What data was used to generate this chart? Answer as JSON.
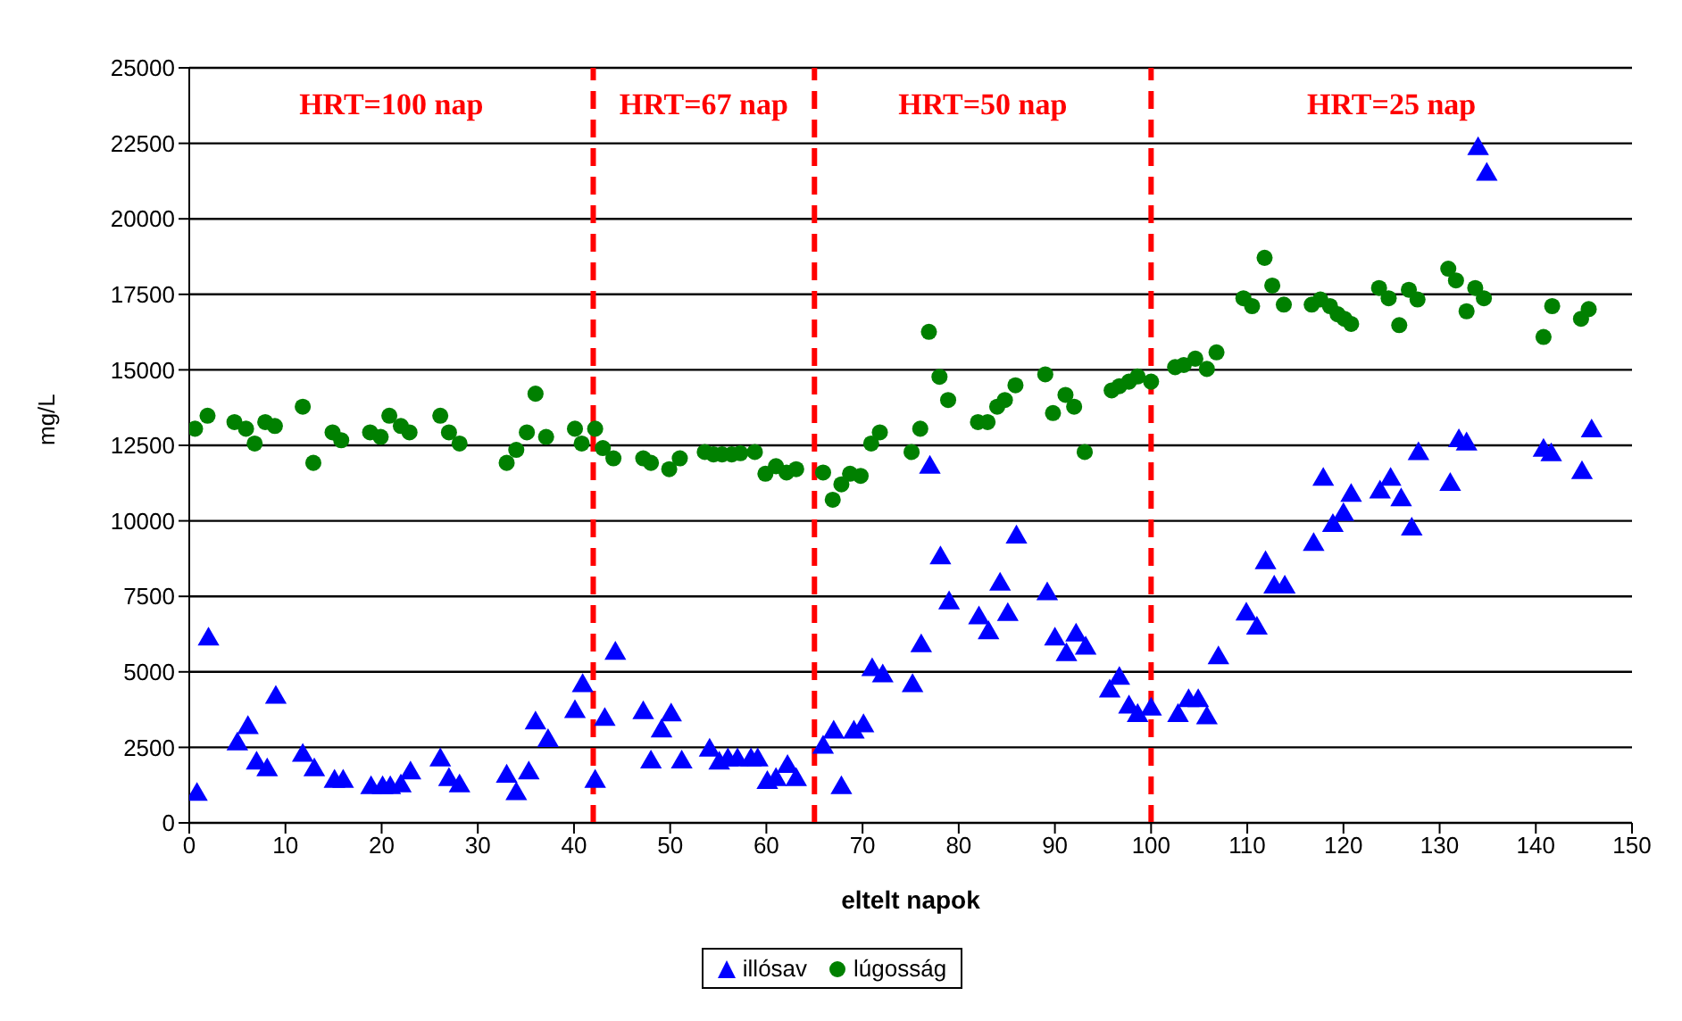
{
  "chart_data": {
    "type": "scatter",
    "xlabel": "eltelt napok",
    "ylabel": "mg/L",
    "xlim": [
      0,
      150
    ],
    "xticks": [
      0,
      10,
      20,
      30,
      40,
      50,
      60,
      70,
      80,
      90,
      100,
      110,
      120,
      130,
      140,
      150
    ],
    "ylim": [
      0,
      25000
    ],
    "yticks": [
      0,
      2500,
      5000,
      7500,
      10000,
      12500,
      15000,
      17500,
      20000,
      22500,
      25000
    ],
    "grid": "y",
    "legend": "bottom",
    "series": [
      {
        "name": "illósav",
        "color": "#0000ff",
        "marker": "triangle",
        "x": [
          0.8,
          2,
          5,
          6.1,
          7,
          8.1,
          9,
          11.8,
          13,
          15.1,
          16,
          18.9,
          20.1,
          20.9,
          22,
          23,
          26.1,
          27,
          28.1,
          33,
          34,
          35.3,
          36,
          37.3,
          40.1,
          40.9,
          42.2,
          43.2,
          44.3,
          47.2,
          48,
          49.1,
          50.1,
          51.2,
          54.1,
          55.1,
          56,
          57,
          58.4,
          59.1,
          60.1,
          61,
          62.2,
          63.1,
          65.9,
          67,
          67.8,
          69.1,
          70.1,
          71,
          72.1,
          75.2,
          76.1,
          77,
          78.1,
          79,
          82.1,
          83.1,
          84.3,
          85.1,
          86,
          89.2,
          90,
          91.2,
          92.2,
          93.2,
          95.7,
          96.7,
          97.7,
          98.6,
          100,
          102.8,
          103.9,
          104.9,
          105.8,
          107,
          109.9,
          111,
          111.9,
          112.8,
          113.9,
          116.9,
          117.9,
          118.9,
          120,
          120.8,
          123.8,
          124.9,
          126,
          127.1,
          127.8,
          131.1,
          132,
          132.8,
          134,
          134.9,
          140.8,
          141.6,
          144.8,
          145.8
        ],
        "values": [
          940,
          6080,
          2610,
          3150,
          1970,
          1750,
          4150,
          2230,
          1750,
          1370,
          1370,
          1160,
          1160,
          1160,
          1220,
          1650,
          2080,
          1430,
          1220,
          1540,
          960,
          1650,
          3300,
          2720,
          3680,
          4540,
          1370,
          3420,
          5610,
          3640,
          2010,
          3040,
          3570,
          2010,
          2400,
          1970,
          2080,
          2080,
          2080,
          2080,
          1330,
          1430,
          1860,
          1430,
          2500,
          3000,
          1160,
          3000,
          3210,
          5070,
          4860,
          4540,
          5860,
          11770,
          8770,
          7280,
          6780,
          6290,
          7900,
          6890,
          9460,
          7580,
          6080,
          5560,
          6210,
          5780,
          4360,
          4780,
          3830,
          3550,
          3760,
          3550,
          4040,
          4040,
          3470,
          5460,
          6910,
          6440,
          8610,
          7800,
          7800,
          9210,
          11370,
          9840,
          10200,
          10840,
          10950,
          11370,
          10690,
          9720,
          12220,
          11200,
          12650,
          12540,
          22320,
          21470,
          12330,
          12180,
          11590,
          12970
        ]
      },
      {
        "name": "lúgosság",
        "color": "#008000",
        "marker": "circle",
        "x": [
          0.6,
          1.9,
          4.7,
          5.9,
          6.8,
          7.9,
          8.9,
          11.8,
          12.9,
          14.9,
          15.8,
          18.8,
          19.9,
          20.8,
          22,
          22.9,
          26.1,
          27,
          28.1,
          33,
          34,
          35.1,
          36,
          37.1,
          40.1,
          40.8,
          42.2,
          43,
          44.1,
          47.2,
          48,
          49.9,
          51,
          53.6,
          54.5,
          55.4,
          56.4,
          57.3,
          58.8,
          59.9,
          61,
          62.1,
          63.1,
          65.9,
          66.9,
          67.8,
          68.7,
          69.8,
          70.9,
          71.8,
          75.1,
          76,
          76.9,
          78,
          78.9,
          82,
          83,
          84,
          84.8,
          85.9,
          89,
          89.8,
          91.1,
          92,
          93.1,
          95.9,
          96.7,
          97.7,
          98.6,
          100,
          102.5,
          103.4,
          104.6,
          105.8,
          106.8,
          109.6,
          110.5,
          111.8,
          112.6,
          113.8,
          116.7,
          117.6,
          118.6,
          119.4,
          120.1,
          120.8,
          123.7,
          124.7,
          125.8,
          126.8,
          127.7,
          130.9,
          131.7,
          132.8,
          133.7,
          134.6,
          140.8,
          141.7,
          144.7,
          145.5
        ],
        "values": [
          13050,
          13480,
          13270,
          13050,
          12560,
          13270,
          13140,
          13780,
          11920,
          12930,
          12670,
          12930,
          12780,
          13480,
          13140,
          12930,
          13480,
          12930,
          12560,
          11920,
          12350,
          12930,
          14210,
          12780,
          13050,
          12560,
          13050,
          12410,
          12070,
          12070,
          11920,
          11710,
          12070,
          12280,
          12200,
          12200,
          12200,
          12240,
          12280,
          11560,
          11810,
          11600,
          11710,
          11600,
          10700,
          11210,
          11560,
          11490,
          12560,
          12930,
          12280,
          13050,
          16260,
          14770,
          14000,
          13270,
          13270,
          13780,
          14000,
          14490,
          14850,
          13570,
          14170,
          13780,
          12280,
          14320,
          14460,
          14610,
          14780,
          14610,
          15090,
          15160,
          15370,
          15030,
          15580,
          17370,
          17110,
          18710,
          17790,
          17160,
          17160,
          17330,
          17110,
          16840,
          16690,
          16520,
          17710,
          17370,
          16480,
          17650,
          17330,
          18350,
          17960,
          16940,
          17710,
          17370,
          16090,
          17110,
          16690,
          17010
        ]
      }
    ],
    "ref_lines": [
      {
        "axis": "x",
        "value": 42,
        "color": "#ff0000",
        "line_style": "dashed"
      },
      {
        "axis": "x",
        "value": 65,
        "color": "#ff0000",
        "line_style": "dashed"
      },
      {
        "axis": "x",
        "value": 100,
        "color": "#ff0000",
        "line_style": "dashed"
      }
    ],
    "annotations": [
      "HRT=100 nap",
      "HRT=67 nap",
      "HRT=50 nap",
      "HRT=25 nap"
    ]
  }
}
